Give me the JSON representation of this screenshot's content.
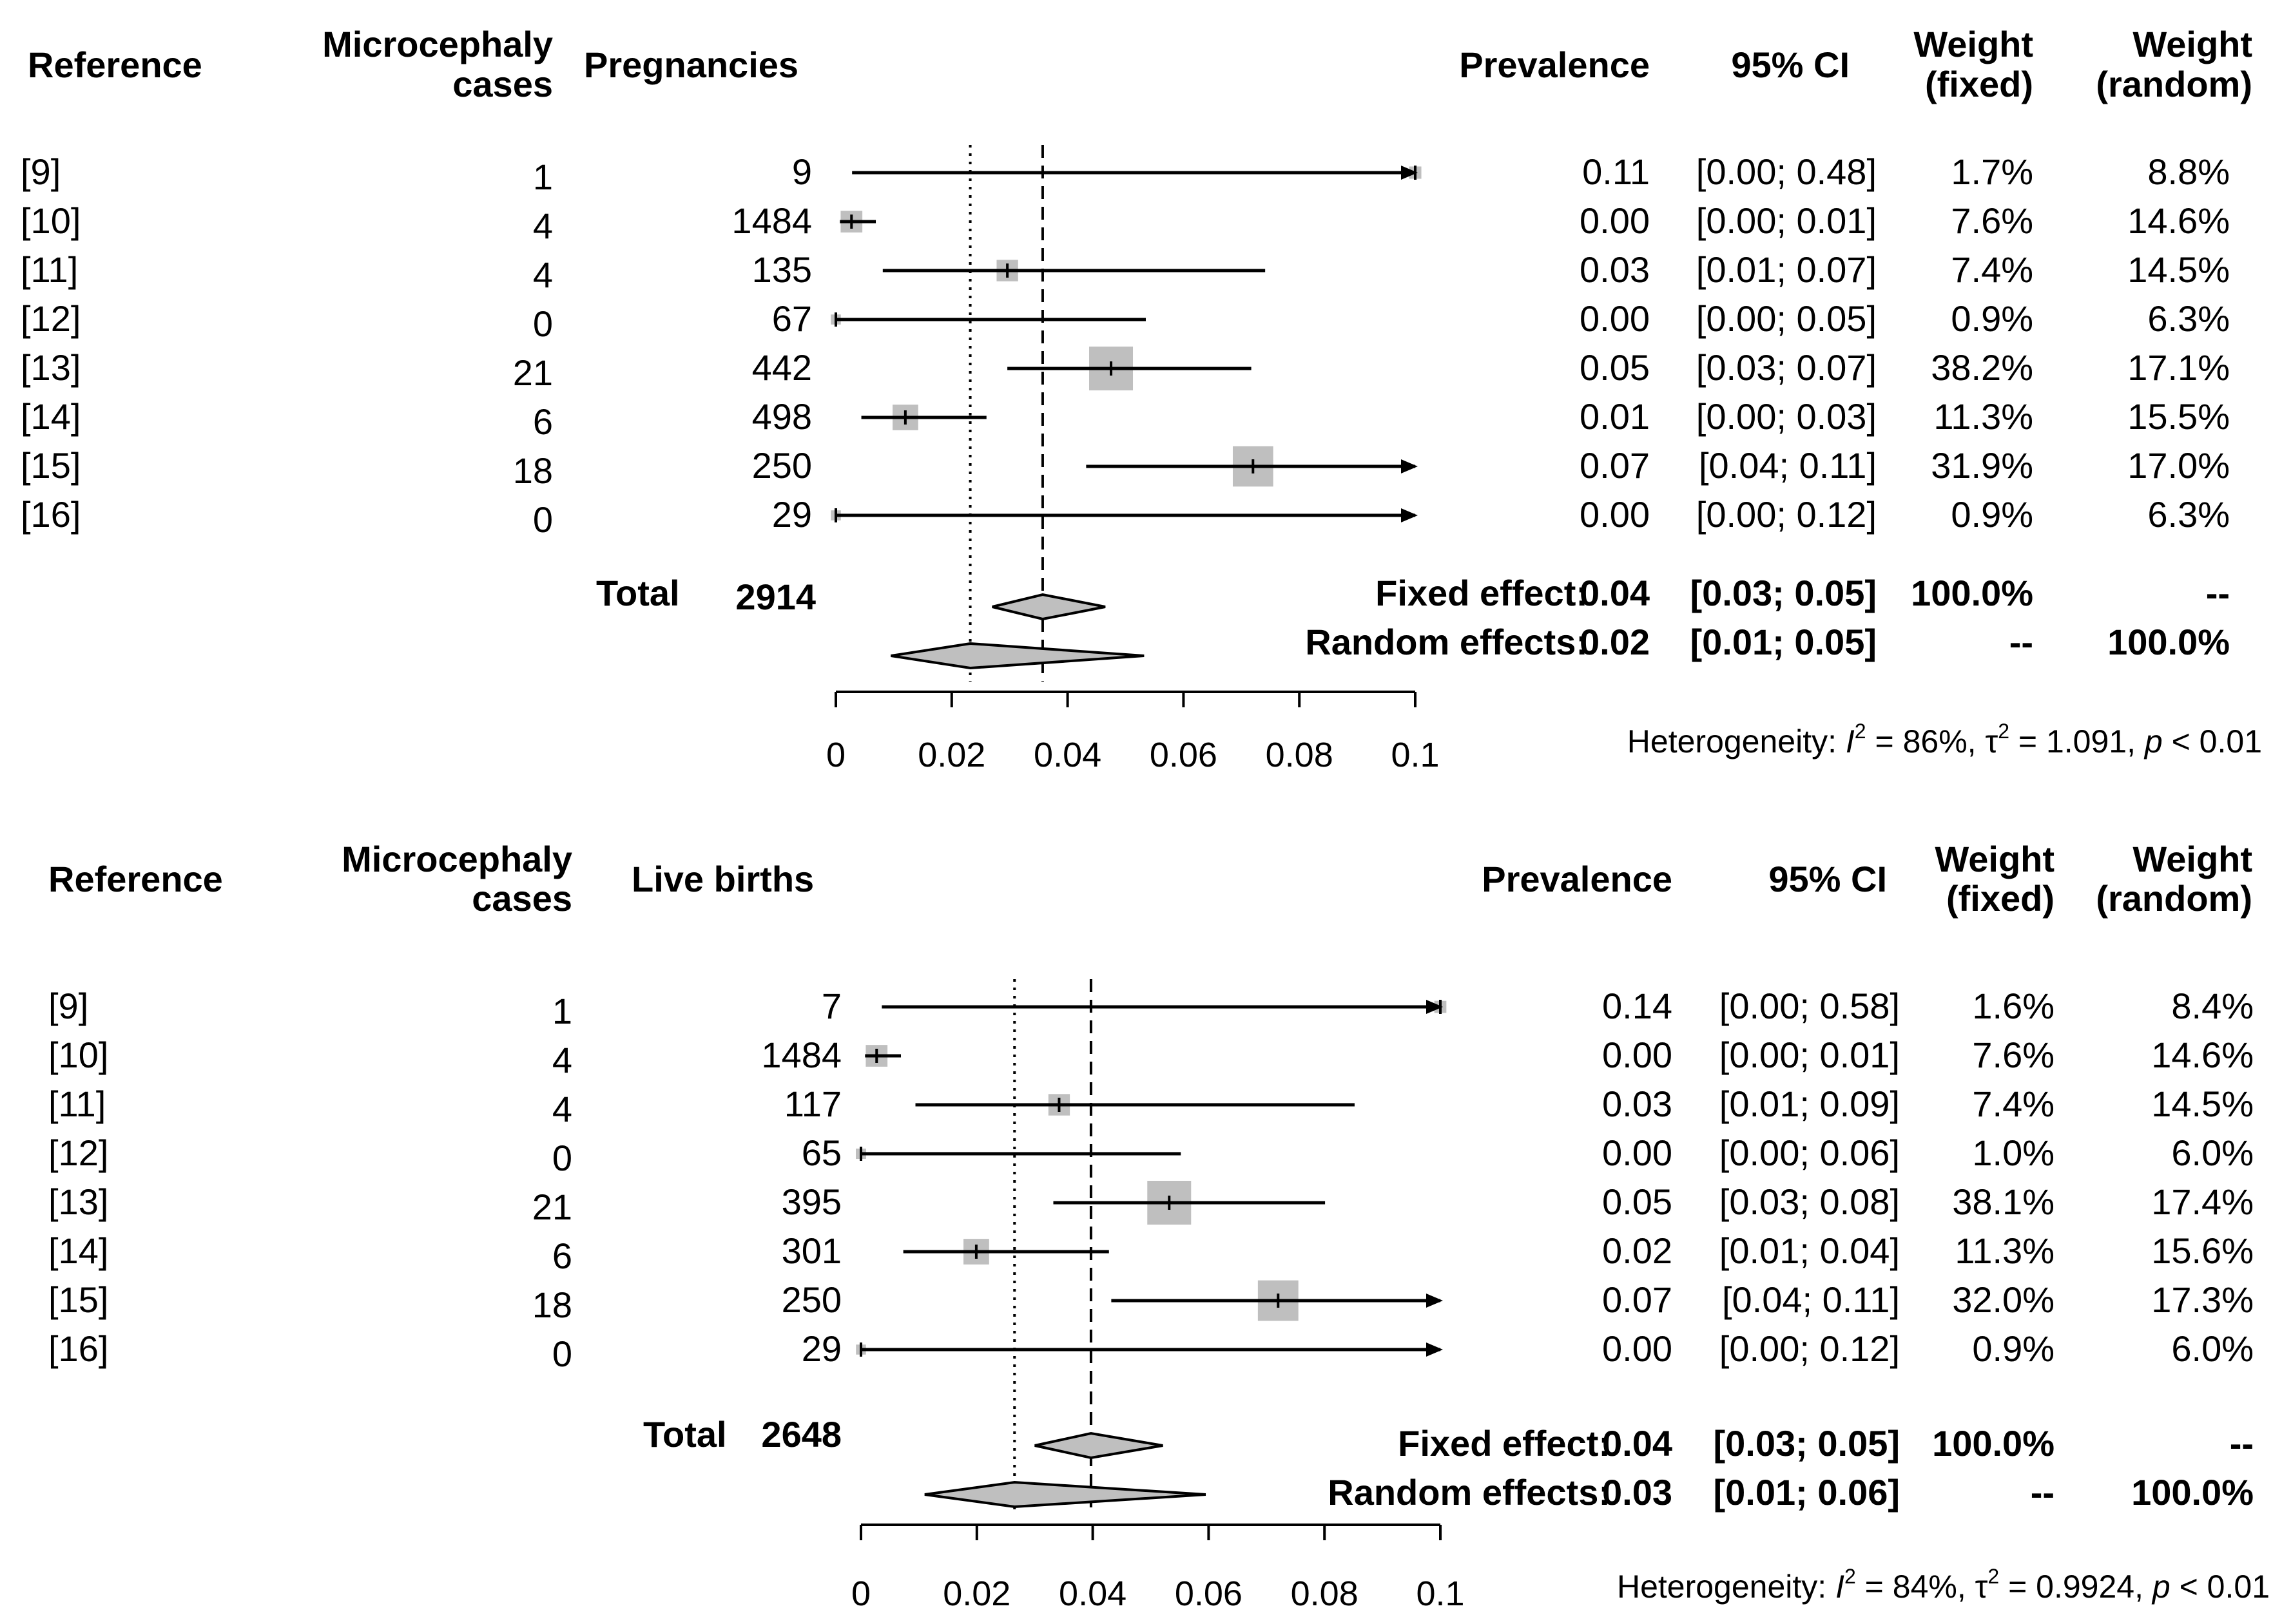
{
  "chart_data": [
    {
      "type": "forest",
      "title": "",
      "xlabel": "",
      "xlim": [
        0,
        0.1
      ],
      "x_ticks": [
        "0",
        "0.02",
        "0.04",
        "0.06",
        "0.08",
        "0.1"
      ],
      "x_tick_values": [
        0,
        0.02,
        0.04,
        0.06,
        0.08,
        0.1
      ],
      "headers": {
        "reference": "Reference",
        "cases_line1": "Microcephaly",
        "cases_line2": "cases",
        "total_col": "Pregnancies",
        "prevalence": "Prevalence",
        "ci": "95% CI",
        "wf_line1": "Weight",
        "wf_line2": "(fixed)",
        "wr_line1": "Weight",
        "wr_line2": "(random)"
      },
      "studies": [
        {
          "ref": "[9]",
          "cases": "1",
          "n": "9",
          "est": 0.111,
          "lo": 0.0028,
          "hi": 0.48,
          "prev": "0.11",
          "ci": "[0.00; 0.48]",
          "w_fixed": "1.7%",
          "w_random": "8.8%",
          "weight": 1.7
        },
        {
          "ref": "[10]",
          "cases": "4",
          "n": "1484",
          "est": 0.0027,
          "lo": 0.0007,
          "hi": 0.0069,
          "prev": "0.00",
          "ci": "[0.00; 0.01]",
          "w_fixed": "7.6%",
          "w_random": "14.6%",
          "weight": 7.6
        },
        {
          "ref": "[11]",
          "cases": "4",
          "n": "135",
          "est": 0.0296,
          "lo": 0.0081,
          "hi": 0.0741,
          "prev": "0.03",
          "ci": "[0.01; 0.07]",
          "w_fixed": "7.4%",
          "w_random": "14.5%",
          "weight": 7.4
        },
        {
          "ref": "[12]",
          "cases": "0",
          "n": "67",
          "est": 0.0,
          "lo": 0.0,
          "hi": 0.0535,
          "prev": "0.00",
          "ci": "[0.00; 0.05]",
          "w_fixed": "0.9%",
          "w_random": "6.3%",
          "weight": 0.9
        },
        {
          "ref": "[13]",
          "cases": "21",
          "n": "442",
          "est": 0.0475,
          "lo": 0.0296,
          "hi": 0.0717,
          "prev": "0.05",
          "ci": "[0.03; 0.07]",
          "w_fixed": "38.2%",
          "w_random": "17.1%",
          "weight": 38.2
        },
        {
          "ref": "[14]",
          "cases": "6",
          "n": "498",
          "est": 0.012,
          "lo": 0.0044,
          "hi": 0.026,
          "prev": "0.01",
          "ci": "[0.00; 0.03]",
          "w_fixed": "11.3%",
          "w_random": "15.5%",
          "weight": 11.3
        },
        {
          "ref": "[15]",
          "cases": "18",
          "n": "250",
          "est": 0.072,
          "lo": 0.0432,
          "hi": 0.111,
          "prev": "0.07",
          "ci": "[0.04; 0.11]",
          "w_fixed": "31.9%",
          "w_random": "17.0%",
          "weight": 31.9
        },
        {
          "ref": "[16]",
          "cases": "0",
          "n": "29",
          "est": 0.0,
          "lo": 0.0,
          "hi": 0.119,
          "prev": "0.00",
          "ci": "[0.00; 0.12]",
          "w_fixed": "0.9%",
          "w_random": "6.3%",
          "weight": 0.9
        }
      ],
      "total_label": "Total",
      "total_n": "2914",
      "fixed": {
        "label": "Fixed effect:",
        "est": 0.0357,
        "lo": 0.027,
        "hi": 0.0465,
        "prev": "0.04",
        "ci": "[0.03; 0.05]",
        "w_fixed": "100.0%",
        "w_random": "--"
      },
      "random": {
        "label": "Random effects:",
        "est": 0.0232,
        "lo": 0.0095,
        "hi": 0.0532,
        "prev": "0.02",
        "ci": "[0.01; 0.05]",
        "w_fixed": "--",
        "w_random": "100.0%"
      },
      "heterogeneity": {
        "prefix": "Heterogeneity: ",
        "i2_label": "I",
        "i2_value": " = 86%, ",
        "tau2_label": "τ",
        "tau2_value": " = 1.091, ",
        "p_label": "p",
        "p_value": " < 0.01",
        "sup": "2"
      }
    },
    {
      "type": "forest",
      "title": "",
      "xlabel": "",
      "xlim": [
        0,
        0.1
      ],
      "x_ticks": [
        "0",
        "0.02",
        "0.04",
        "0.06",
        "0.08",
        "0.1"
      ],
      "x_tick_values": [
        0,
        0.02,
        0.04,
        0.06,
        0.08,
        0.1
      ],
      "headers": {
        "reference": "Reference",
        "cases_line1": "Microcephaly",
        "cases_line2": "cases",
        "total_col": "Live births",
        "prevalence": "Prevalence",
        "ci": "95% CI",
        "wf_line1": "Weight",
        "wf_line2": "(fixed)",
        "wr_line1": "Weight",
        "wr_line2": "(random)"
      },
      "studies": [
        {
          "ref": "[9]",
          "cases": "1",
          "n": "7",
          "est": 0.1429,
          "lo": 0.0036,
          "hi": 0.58,
          "prev": "0.14",
          "ci": "[0.00; 0.58]",
          "w_fixed": "1.6%",
          "w_random": "8.4%",
          "weight": 1.6
        },
        {
          "ref": "[10]",
          "cases": "4",
          "n": "1484",
          "est": 0.0027,
          "lo": 0.0007,
          "hi": 0.0069,
          "prev": "0.00",
          "ci": "[0.00; 0.01]",
          "w_fixed": "7.6%",
          "w_random": "14.6%",
          "weight": 7.6
        },
        {
          "ref": "[11]",
          "cases": "4",
          "n": "117",
          "est": 0.0342,
          "lo": 0.0094,
          "hi": 0.0852,
          "prev": "0.03",
          "ci": "[0.01; 0.09]",
          "w_fixed": "7.4%",
          "w_random": "14.5%",
          "weight": 7.4
        },
        {
          "ref": "[12]",
          "cases": "0",
          "n": "65",
          "est": 0.0,
          "lo": 0.0,
          "hi": 0.0552,
          "prev": "0.00",
          "ci": "[0.00; 0.06]",
          "w_fixed": "1.0%",
          "w_random": "6.0%",
          "weight": 1.0
        },
        {
          "ref": "[13]",
          "cases": "21",
          "n": "395",
          "est": 0.0532,
          "lo": 0.0332,
          "hi": 0.0801,
          "prev": "0.05",
          "ci": "[0.03; 0.08]",
          "w_fixed": "38.1%",
          "w_random": "17.4%",
          "weight": 38.1
        },
        {
          "ref": "[14]",
          "cases": "6",
          "n": "301",
          "est": 0.0199,
          "lo": 0.0073,
          "hi": 0.0428,
          "prev": "0.02",
          "ci": "[0.01; 0.04]",
          "w_fixed": "11.3%",
          "w_random": "15.6%",
          "weight": 11.3
        },
        {
          "ref": "[15]",
          "cases": "18",
          "n": "250",
          "est": 0.072,
          "lo": 0.0432,
          "hi": 0.111,
          "prev": "0.07",
          "ci": "[0.04; 0.11]",
          "w_fixed": "32.0%",
          "w_random": "17.3%",
          "weight": 32.0
        },
        {
          "ref": "[16]",
          "cases": "0",
          "n": "29",
          "est": 0.0,
          "lo": 0.0,
          "hi": 0.119,
          "prev": "0.00",
          "ci": "[0.00; 0.12]",
          "w_fixed": "0.9%",
          "w_random": "6.0%",
          "weight": 0.9
        }
      ],
      "total_label": "Total",
      "total_n": "2648",
      "fixed": {
        "label": "Fixed effect:",
        "est": 0.0397,
        "lo": 0.03,
        "hi": 0.0521,
        "prev": "0.04",
        "ci": "[0.03; 0.05]",
        "w_fixed": "100.0%",
        "w_random": "--"
      },
      "random": {
        "label": "Random effects:",
        "est": 0.0265,
        "lo": 0.011,
        "hi": 0.0595,
        "prev": "0.03",
        "ci": "[0.01; 0.06]",
        "w_fixed": "--",
        "w_random": "100.0%"
      },
      "heterogeneity": {
        "prefix": "Heterogeneity: ",
        "i2_label": "I",
        "i2_value": " = 84%, ",
        "tau2_label": "τ",
        "tau2_value": " = 0.9924, ",
        "p_label": "p",
        "p_value": " < 0.01",
        "sup": "2"
      }
    }
  ]
}
